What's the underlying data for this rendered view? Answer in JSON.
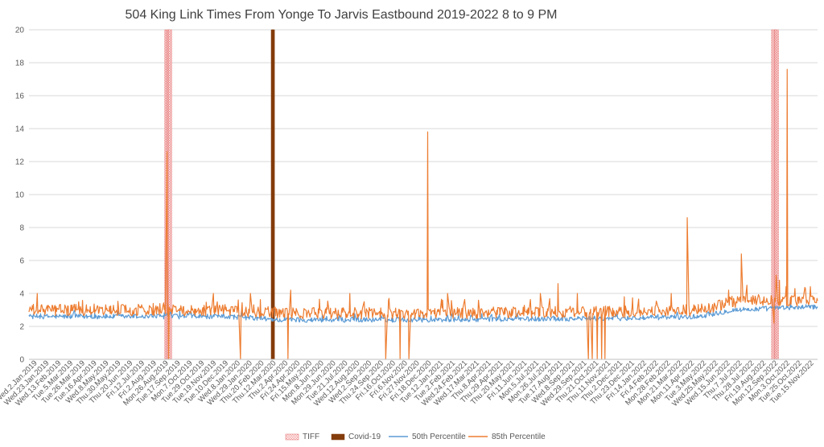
{
  "chart_data": {
    "type": "line",
    "title": "504 King Link Times From Yonge To Jarvis Eastbound 2019-2022 8 to 9 PM",
    "xlabel": "",
    "ylabel": "",
    "ylim": [
      0,
      20
    ],
    "y_ticks": [
      0,
      2,
      4,
      6,
      8,
      10,
      12,
      14,
      16,
      18,
      20
    ],
    "grid": true,
    "legend_position": "bottom",
    "x_tick_labels": [
      "Wed.2.Jan.2019",
      "Wed.23.Jan.2019",
      "Wed.13.Feb.2019",
      "Tue.5.Mar.2019",
      "Tue.26.Mar.2019",
      "Tue.16.Apr.2019",
      "Wed.8.May.2019",
      "Thu.30.May.2019",
      "Thu.20.Jun.2019",
      "Fri.12.Jul.2019",
      "Fri.2.Aug.2019",
      "Mon.26.Aug.2019",
      "Tue.17.Sep.2019",
      "Mon.7.Oct.2019",
      "Tue.29.Oct.2019",
      "Tue.19.Nov.2019",
      "Tue.10.Dec.2019",
      "Wed.8.Jan.2020",
      "Wed.29.Jan.2020",
      "Thu.20.Feb.2020",
      "Thu.12.Mar.2020",
      "Thu.2.Apr.2020",
      "Fri.24.Apr.2020",
      "Fri.15.May.2020",
      "Mon.8.Jun.2020",
      "Mon.29.Jun.2020",
      "Tue.21.Jul.2020",
      "Wed.12.Aug.2020",
      "Wed.2.Sep.2020",
      "Thu.24.Sep.2020",
      "Fri.16.Oct.2020",
      "Fri.6.Nov.2020",
      "Fri.27.Nov.2020",
      "Fri.18.Dec.2020",
      "Tue.12.Jan.2021",
      "Tue.2.Feb.2021",
      "Wed.24.Feb.2021",
      "Wed.17.Mar.2021",
      "Thu.8.Apr.2021",
      "Thu.29.Apr.2021",
      "Thu.20.May.2021",
      "Fri.11.Jun.2021",
      "Mon.5.Jul.2021",
      "Mon.26.Jul.2021",
      "Tue.17.Aug.2021",
      "Wed.8.Sep.2021",
      "Wed.29.Sep.2021",
      "Thu.21.Oct.2021",
      "Thu.11.Nov.2021",
      "Thu.2.Dec.2021",
      "Thu.23.Dec.2021",
      "Fri.14.Jan.2022",
      "Fri.4.Feb.2022",
      "Mon.28.Feb.2022",
      "Mon.21.Mar.2022",
      "Mon.11.Apr.2022",
      "Tue.3.May.2022",
      "Wed.25.May.2022",
      "Wed.15.Jun.2022",
      "Thu.7.Jul.2022",
      "Thu.28.Jul.2022",
      "Fri.19.Aug.2022",
      "Mon.12.Sep.2022",
      "Mon.3.Oct.2022",
      "Tue.25.Oct.2022",
      "Tue.15.Nov.2022"
    ],
    "x_range": [
      "2019-01-02",
      "2022-11-30"
    ],
    "series": [
      {
        "name": "TIFF",
        "kind": "bar",
        "color": "#f4b8b8",
        "pattern": "dotted",
        "points": [
          {
            "x": "2019-09-05",
            "y": 20
          },
          {
            "x": "2019-09-06",
            "y": 20
          },
          {
            "x": "2019-09-09",
            "y": 20
          },
          {
            "x": "2019-09-10",
            "y": 20
          },
          {
            "x": "2019-09-11",
            "y": 20
          },
          {
            "x": "2019-09-12",
            "y": 20
          },
          {
            "x": "2019-09-13",
            "y": 20
          },
          {
            "x": "2019-09-16",
            "y": 20
          },
          {
            "x": "2022-09-08",
            "y": 20
          },
          {
            "x": "2022-09-09",
            "y": 20
          },
          {
            "x": "2022-09-12",
            "y": 20
          },
          {
            "x": "2022-09-13",
            "y": 20
          },
          {
            "x": "2022-09-14",
            "y": 20
          },
          {
            "x": "2022-09-15",
            "y": 20
          },
          {
            "x": "2022-09-16",
            "y": 20
          },
          {
            "x": "2022-09-19",
            "y": 20
          }
        ]
      },
      {
        "name": "Covid-19",
        "kind": "bar",
        "color": "#843c0c",
        "points": [
          {
            "x": "2020-03-16",
            "y": 20
          },
          {
            "x": "2020-03-17",
            "y": 20
          },
          {
            "x": "2020-03-18",
            "y": 20
          },
          {
            "x": "2020-03-19",
            "y": 20
          },
          {
            "x": "2020-03-20",
            "y": 20
          }
        ]
      },
      {
        "name": "50th Percentile",
        "kind": "line",
        "color": "#5b9bd5",
        "base_level": [
          {
            "x": "2019-01-02",
            "y": 2.6
          },
          {
            "x": "2019-12-31",
            "y": 2.6
          },
          {
            "x": "2020-03-31",
            "y": 2.4
          },
          {
            "x": "2020-12-31",
            "y": 2.4
          },
          {
            "x": "2021-12-31",
            "y": 2.5
          },
          {
            "x": "2022-04-30",
            "y": 2.6
          },
          {
            "x": "2022-06-30",
            "y": 3.0
          },
          {
            "x": "2022-11-30",
            "y": 3.2
          }
        ],
        "noise": 0.15
      },
      {
        "name": "85th Percentile",
        "kind": "line",
        "color": "#ed7d31",
        "base_level": [
          {
            "x": "2019-01-02",
            "y": 3.0
          },
          {
            "x": "2019-12-31",
            "y": 3.0
          },
          {
            "x": "2020-03-31",
            "y": 2.8
          },
          {
            "x": "2020-12-31",
            "y": 2.8
          },
          {
            "x": "2021-12-31",
            "y": 2.9
          },
          {
            "x": "2022-04-30",
            "y": 3.0
          },
          {
            "x": "2022-06-30",
            "y": 3.5
          },
          {
            "x": "2022-11-30",
            "y": 3.6
          }
        ],
        "noise": 0.35,
        "notable_points": [
          {
            "x": "2019-01-17",
            "y": 4.0
          },
          {
            "x": "2019-09-09",
            "y": 12.6
          },
          {
            "x": "2019-09-12",
            "y": 0
          },
          {
            "x": "2019-12-02",
            "y": 4.0
          },
          {
            "x": "2020-01-20",
            "y": 0
          },
          {
            "x": "2020-02-07",
            "y": 4.0
          },
          {
            "x": "2020-04-15",
            "y": 0
          },
          {
            "x": "2020-04-20",
            "y": 4.2
          },
          {
            "x": "2020-08-05",
            "y": 4.0
          },
          {
            "x": "2020-10-09",
            "y": 0
          },
          {
            "x": "2020-10-15",
            "y": 3.7
          },
          {
            "x": "2020-11-04",
            "y": 0
          },
          {
            "x": "2020-11-20",
            "y": 0
          },
          {
            "x": "2020-12-24",
            "y": 13.8
          },
          {
            "x": "2021-01-29",
            "y": 4.0
          },
          {
            "x": "2021-07-16",
            "y": 4.0
          },
          {
            "x": "2021-08-17",
            "y": 4.6
          },
          {
            "x": "2021-09-21",
            "y": 4.0
          },
          {
            "x": "2021-10-11",
            "y": 0
          },
          {
            "x": "2021-10-18",
            "y": 0
          },
          {
            "x": "2021-10-27",
            "y": 0
          },
          {
            "x": "2021-11-04",
            "y": 0
          },
          {
            "x": "2021-11-10",
            "y": 0
          },
          {
            "x": "2021-12-15",
            "y": 3.8
          },
          {
            "x": "2022-03-10",
            "y": 4.0
          },
          {
            "x": "2022-04-08",
            "y": 8.6
          },
          {
            "x": "2022-06-22",
            "y": 4.2
          },
          {
            "x": "2022-07-15",
            "y": 6.4
          },
          {
            "x": "2022-07-25",
            "y": 4.5
          },
          {
            "x": "2022-09-12",
            "y": 2.2
          },
          {
            "x": "2022-09-16",
            "y": 5.1
          },
          {
            "x": "2022-09-22",
            "y": 4.8
          },
          {
            "x": "2022-10-06",
            "y": 17.6
          },
          {
            "x": "2022-10-20",
            "y": 4.3
          },
          {
            "x": "2022-11-08",
            "y": 4.3
          }
        ]
      }
    ]
  }
}
